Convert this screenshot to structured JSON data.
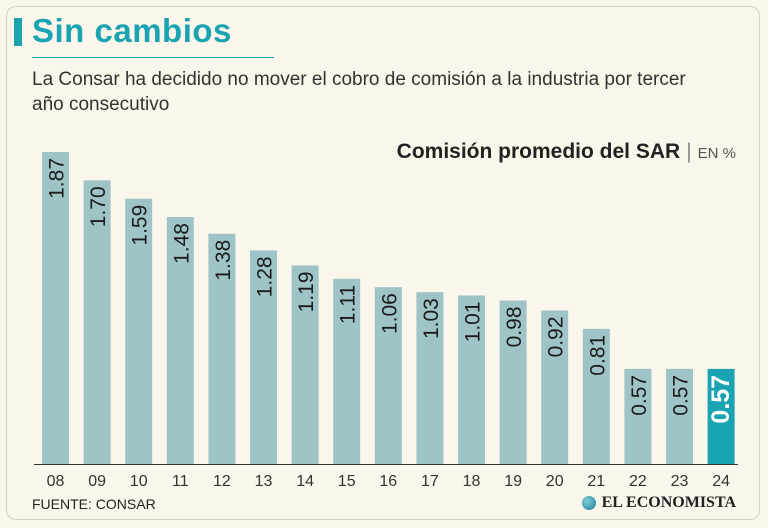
{
  "header": {
    "title": "Sin cambios",
    "subtitle": "La Consar ha decidido no mover el cobro de comisión a la industria por tercer año consecutivo"
  },
  "chart_heading": {
    "main": "Comisión promedio del SAR",
    "separator": "|",
    "unit": "EN %"
  },
  "footer": {
    "source": "FUENTE: CONSAR",
    "brand": "EL ECONOMISTA"
  },
  "colors": {
    "bar": "#9ec4c8",
    "highlight": "#1aa3b1",
    "axis": "#333333"
  },
  "chart_data": {
    "type": "bar",
    "title": "Comisión promedio del SAR",
    "ylabel": "EN %",
    "xlabel": "",
    "categories": [
      "08",
      "09",
      "10",
      "11",
      "12",
      "13",
      "14",
      "15",
      "16",
      "17",
      "18",
      "19",
      "20",
      "21",
      "22",
      "23",
      "24"
    ],
    "values": [
      1.87,
      1.7,
      1.59,
      1.48,
      1.38,
      1.28,
      1.19,
      1.11,
      1.06,
      1.03,
      1.01,
      0.98,
      0.92,
      0.81,
      0.57,
      0.57,
      0.57
    ],
    "labels": [
      "1.87",
      "1.70",
      "1.59",
      "1.48",
      "1.38",
      "1.28",
      "1.19",
      "1.11",
      "1.06",
      "1.03",
      "1.01",
      "0.98",
      "0.92",
      "0.81",
      "0.57",
      "0.57",
      "0.57"
    ],
    "highlight_index": 16,
    "ylim": [
      0,
      1.87
    ],
    "grid": false
  }
}
